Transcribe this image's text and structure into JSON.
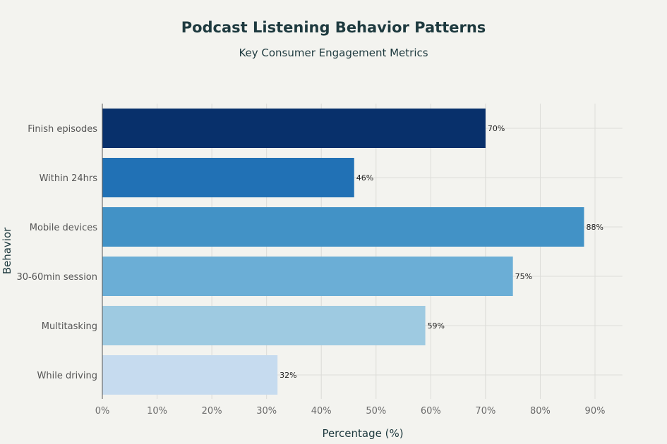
{
  "chart_data": {
    "type": "bar",
    "orientation": "horizontal",
    "title": "Podcast Listening Behavior Patterns",
    "subtitle": "Key Consumer Engagement Metrics",
    "xlabel": "Percentage (%)",
    "ylabel": "Behavior",
    "categories": [
      "Finish episodes",
      "Within 24hrs",
      "Mobile devices",
      "30-60min session",
      "Multitasking",
      "While driving"
    ],
    "values": [
      70,
      46,
      88,
      75,
      59,
      32
    ],
    "data_labels": [
      "70%",
      "46%",
      "88%",
      "75%",
      "59%",
      "32%"
    ],
    "colors": [
      "#08306b",
      "#2171b5",
      "#4292c6",
      "#6baed6",
      "#9ecae1",
      "#c6dbef"
    ],
    "xlim": [
      0,
      95
    ],
    "xticks": [
      0,
      10,
      20,
      30,
      40,
      50,
      60,
      70,
      80,
      90
    ],
    "xtick_labels": [
      "0%",
      "10%",
      "20%",
      "30%",
      "40%",
      "50%",
      "60%",
      "70%",
      "80%",
      "90%"
    ],
    "grid": true,
    "legend": "none"
  }
}
